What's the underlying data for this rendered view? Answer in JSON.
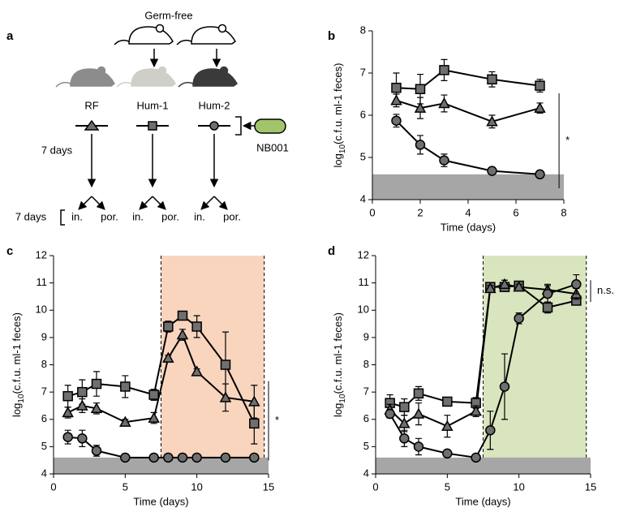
{
  "diagram": {
    "panel_label": "a",
    "germ_free": "Germ-free",
    "groups": [
      "RF",
      "Hum-1",
      "Hum-2"
    ],
    "strain": "NB001",
    "period_1": "7 days",
    "period_2": "7 days",
    "sites": [
      [
        "in.",
        "por."
      ],
      [
        "in.",
        "por."
      ],
      [
        "in.",
        "por."
      ]
    ]
  },
  "chart_data": [
    {
      "type": "line",
      "panel_label": "b",
      "xlabel": "Time (days)",
      "ylabel_parts": [
        "log",
        "10",
        "(c.f.u. ml-1 feces)"
      ],
      "xlim": [
        0,
        8
      ],
      "xticks": [
        0,
        2,
        4,
        6,
        8
      ],
      "ylim": [
        4,
        8
      ],
      "yticks": [
        4,
        5,
        6,
        7,
        8
      ],
      "limit_band": [
        4,
        4.6
      ],
      "band_color": "#a6a6a6",
      "bracket": {
        "x": 7.8,
        "y": [
          4.27,
          6.52
        ],
        "label": "*"
      },
      "x": [
        1,
        2,
        3,
        5,
        7
      ],
      "series": [
        {
          "marker": "square",
          "color": "#6f6f6f",
          "values": [
            6.65,
            6.62,
            7.07,
            6.85,
            6.7
          ],
          "errors": [
            0.35,
            0.35,
            0.25,
            0.18,
            0.15
          ]
        },
        {
          "marker": "triangle",
          "color": "#6f6f6f",
          "values": [
            6.35,
            6.17,
            6.28,
            5.85,
            6.17
          ],
          "errors": [
            0.15,
            0.25,
            0.2,
            0.15,
            0.12
          ]
        },
        {
          "marker": "circle",
          "color": "#6f6f6f",
          "values": [
            5.87,
            5.3,
            4.93,
            4.68,
            4.6
          ],
          "errors": [
            0.15,
            0.22,
            0.15,
            0.05,
            0.03
          ]
        }
      ]
    },
    {
      "type": "line",
      "panel_label": "c",
      "xlabel": "Time (days)",
      "ylabel_parts": [
        "log",
        "10",
        "(c.f.u. ml-1 feces)"
      ],
      "xlim": [
        0,
        15
      ],
      "xticks": [
        0,
        5,
        10,
        15
      ],
      "ylim": [
        4,
        12
      ],
      "yticks": [
        4,
        5,
        6,
        7,
        8,
        9,
        10,
        11,
        12
      ],
      "limit_band": [
        4,
        4.6
      ],
      "band_color": "#a6a6a6",
      "highlight": {
        "xlim": [
          7.5,
          14.7
        ],
        "color": "#f9d5bd"
      },
      "bracket": {
        "x": 15,
        "y": [
          4.5,
          7.4
        ],
        "label": "*"
      },
      "x": [
        1,
        2,
        3,
        5,
        7,
        8,
        9,
        10,
        12,
        14
      ],
      "series": [
        {
          "marker": "square",
          "color": "#6f6f6f",
          "values": [
            6.85,
            7.0,
            7.3,
            7.2,
            6.9,
            9.4,
            9.8,
            9.4,
            8.0,
            5.85
          ],
          "errors": [
            0.4,
            0.45,
            0.45,
            0.4,
            0.2,
            0.2,
            0.15,
            0.4,
            1.2,
            0.75
          ]
        },
        {
          "marker": "triangle",
          "color": "#6f6f6f",
          "values": [
            6.25,
            6.5,
            6.4,
            5.9,
            6.05,
            8.25,
            9.1,
            7.75,
            6.8,
            6.65
          ],
          "errors": [
            0.2,
            0.25,
            0.2,
            0.1,
            0.2,
            0.1,
            0.2,
            0.1,
            0.5,
            0.6
          ]
        },
        {
          "marker": "circle",
          "color": "#6f6f6f",
          "values": [
            5.35,
            5.3,
            4.85,
            4.6,
            4.6,
            4.6,
            4.6,
            4.6,
            4.6,
            4.6
          ],
          "errors": [
            0.25,
            0.3,
            0.2,
            0,
            0,
            0,
            0,
            0,
            0,
            0
          ]
        }
      ]
    },
    {
      "type": "line",
      "panel_label": "d",
      "xlabel": "Time (days)",
      "ylabel_parts": [
        "log",
        "10",
        "(c.f.u. ml-1 feces)"
      ],
      "xlim": [
        0,
        15
      ],
      "xticks": [
        0,
        5,
        10,
        15
      ],
      "ylim": [
        4,
        12
      ],
      "yticks": [
        4,
        5,
        6,
        7,
        8,
        9,
        10,
        11,
        12
      ],
      "limit_band": [
        4,
        4.6
      ],
      "band_color": "#a6a6a6",
      "highlight": {
        "xlim": [
          7.5,
          14.7
        ],
        "color": "#d9e5be"
      },
      "bracket": {
        "x": 15,
        "y": [
          10.3,
          11.1
        ],
        "label": "n.s."
      },
      "x": [
        1,
        2,
        3,
        5,
        7,
        8,
        9,
        10,
        12,
        14
      ],
      "series": [
        {
          "marker": "square",
          "color": "#6f6f6f",
          "values": [
            6.6,
            6.45,
            6.95,
            6.65,
            6.6,
            10.85,
            10.85,
            10.9,
            10.1,
            10.35
          ],
          "errors": [
            0.3,
            0.3,
            0.25,
            0.15,
            0.2,
            0.1,
            0.1,
            0.1,
            0.2,
            0.15
          ]
        },
        {
          "marker": "triangle",
          "color": "#6f6f6f",
          "values": [
            6.35,
            5.85,
            6.2,
            5.75,
            6.3,
            10.8,
            10.95,
            10.85,
            10.75,
            10.6
          ],
          "errors": [
            0.2,
            0.3,
            0.4,
            0.4,
            0.2,
            0.1,
            0.15,
            0.1,
            0.2,
            0.2
          ]
        },
        {
          "marker": "circle",
          "color": "#6f6f6f",
          "values": [
            6.2,
            5.3,
            5.0,
            4.75,
            4.6,
            5.6,
            7.2,
            9.7,
            10.6,
            10.95
          ],
          "errors": [
            0.15,
            0.3,
            0.3,
            0.1,
            0.05,
            0.7,
            1.2,
            0.2,
            0.3,
            0.35
          ]
        }
      ]
    }
  ]
}
